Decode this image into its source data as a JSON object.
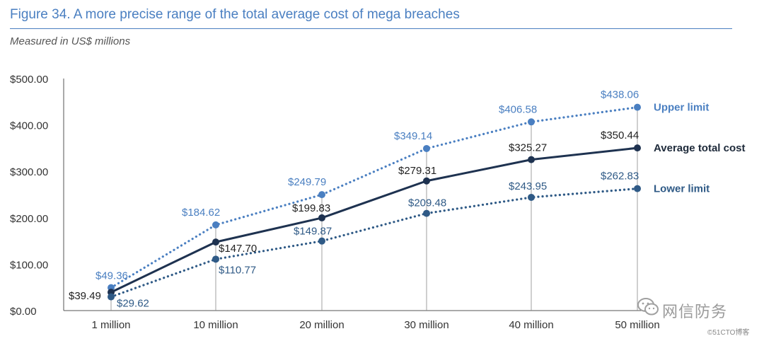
{
  "title": "Figure 34. A more precise range of the total average cost of mega breaches",
  "subtitle": "Measured in US$ millions",
  "watermark": {
    "main": "网信防务",
    "secondary": "©51CTO博客"
  },
  "chart_data": {
    "type": "line",
    "categories": [
      "1 million",
      "10 million",
      "20 million",
      "30 million",
      "40 million",
      "50 million"
    ],
    "yticks": [
      "$0.00",
      "$100.00",
      "$200.00",
      "$300.00",
      "$400.00",
      "$500.00"
    ],
    "ylim": [
      0,
      500
    ],
    "grid": false,
    "legend": "right, inline labels",
    "series": [
      {
        "name": "Upper limit",
        "values": [
          49.36,
          184.62,
          249.79,
          349.14,
          406.58,
          438.06
        ],
        "labels": [
          "$49.36",
          "$184.62",
          "$249.79",
          "$349.14",
          "$406.58",
          "$438.06"
        ],
        "color": "#4a7fc1",
        "style": "dotted"
      },
      {
        "name": "Average total cost",
        "values": [
          39.49,
          147.7,
          199.83,
          279.31,
          325.27,
          350.44
        ],
        "labels": [
          "$39.49",
          "$147.70",
          "$199.83",
          "$279.31",
          "$325.27",
          "$350.44"
        ],
        "color": "#1e3250",
        "style": "solid"
      },
      {
        "name": "Lower limit",
        "values": [
          29.62,
          110.77,
          149.87,
          209.48,
          243.95,
          262.83
        ],
        "labels": [
          "$29.62",
          "$110.77",
          "$149.87",
          "$209.48",
          "$243.95",
          "$262.83"
        ],
        "color": "#2f5a86",
        "style": "dotted"
      }
    ]
  }
}
